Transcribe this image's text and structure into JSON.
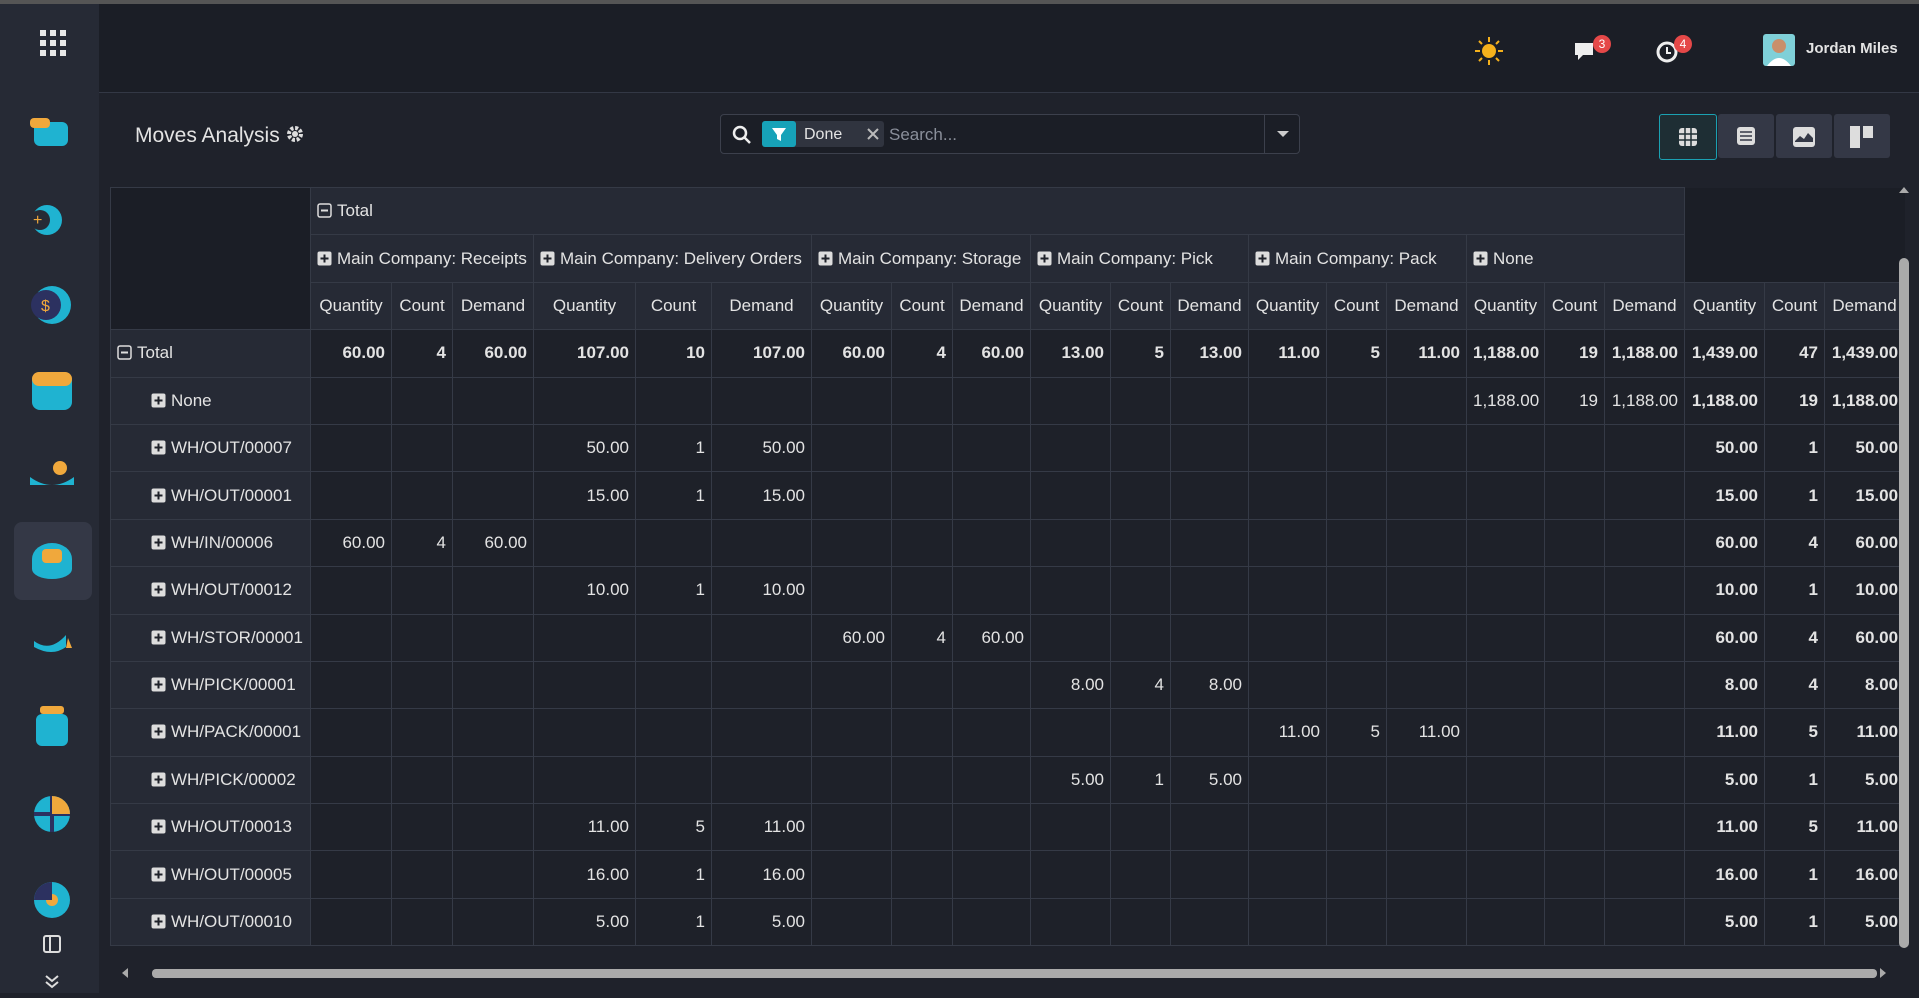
{
  "header": {
    "user_name": "Jordan Miles",
    "messages_count": "3",
    "activities_count": "4"
  },
  "control_panel": {
    "title": "Moves Analysis",
    "filter": "Done",
    "search_placeholder": "Search..."
  },
  "pivot": {
    "column_total": "Total",
    "groups": [
      "Main Company: Receipts",
      "Main Company: Delivery Orders",
      "Main Company: Storage",
      "Main Company: Pick",
      "Main Company: Pack",
      "None"
    ],
    "measures": [
      "Quantity",
      "Count",
      "Demand"
    ],
    "total_row": {
      "label": "Total",
      "values": [
        "60.00",
        "4",
        "60.00",
        "107.00",
        "10",
        "107.00",
        "60.00",
        "4",
        "60.00",
        "13.00",
        "5",
        "13.00",
        "11.00",
        "5",
        "11.00",
        "1,188.00",
        "19",
        "1,188.00",
        "1,439.00",
        "47",
        "1,439.00"
      ]
    },
    "rows": [
      {
        "label": "None",
        "values": [
          null,
          null,
          null,
          null,
          null,
          null,
          null,
          null,
          null,
          null,
          null,
          null,
          null,
          null,
          null,
          "1,188.00",
          "19",
          "1,188.00",
          "1,188.00",
          "19",
          "1,188.00"
        ]
      },
      {
        "label": "WH/OUT/00007",
        "values": [
          null,
          null,
          null,
          "50.00",
          "1",
          "50.00",
          null,
          null,
          null,
          null,
          null,
          null,
          null,
          null,
          null,
          null,
          null,
          null,
          "50.00",
          "1",
          "50.00"
        ]
      },
      {
        "label": "WH/OUT/00001",
        "values": [
          null,
          null,
          null,
          "15.00",
          "1",
          "15.00",
          null,
          null,
          null,
          null,
          null,
          null,
          null,
          null,
          null,
          null,
          null,
          null,
          "15.00",
          "1",
          "15.00"
        ]
      },
      {
        "label": "WH/IN/00006",
        "values": [
          "60.00",
          "4",
          "60.00",
          null,
          null,
          null,
          null,
          null,
          null,
          null,
          null,
          null,
          null,
          null,
          null,
          null,
          null,
          null,
          "60.00",
          "4",
          "60.00"
        ]
      },
      {
        "label": "WH/OUT/00012",
        "values": [
          null,
          null,
          null,
          "10.00",
          "1",
          "10.00",
          null,
          null,
          null,
          null,
          null,
          null,
          null,
          null,
          null,
          null,
          null,
          null,
          "10.00",
          "1",
          "10.00"
        ]
      },
      {
        "label": "WH/STOR/00001",
        "values": [
          null,
          null,
          null,
          null,
          null,
          null,
          "60.00",
          "4",
          "60.00",
          null,
          null,
          null,
          null,
          null,
          null,
          null,
          null,
          null,
          "60.00",
          "4",
          "60.00"
        ]
      },
      {
        "label": "WH/PICK/00001",
        "values": [
          null,
          null,
          null,
          null,
          null,
          null,
          null,
          null,
          null,
          "8.00",
          "4",
          "8.00",
          null,
          null,
          null,
          null,
          null,
          null,
          "8.00",
          "4",
          "8.00"
        ]
      },
      {
        "label": "WH/PACK/00001",
        "values": [
          null,
          null,
          null,
          null,
          null,
          null,
          null,
          null,
          null,
          null,
          null,
          null,
          "11.00",
          "5",
          "11.00",
          null,
          null,
          null,
          "11.00",
          "5",
          "11.00"
        ]
      },
      {
        "label": "WH/PICK/00002",
        "values": [
          null,
          null,
          null,
          null,
          null,
          null,
          null,
          null,
          null,
          "5.00",
          "1",
          "5.00",
          null,
          null,
          null,
          null,
          null,
          null,
          "5.00",
          "1",
          "5.00"
        ]
      },
      {
        "label": "WH/OUT/00013",
        "values": [
          null,
          null,
          null,
          "11.00",
          "5",
          "11.00",
          null,
          null,
          null,
          null,
          null,
          null,
          null,
          null,
          null,
          null,
          null,
          null,
          "11.00",
          "5",
          "11.00"
        ]
      },
      {
        "label": "WH/OUT/00005",
        "values": [
          null,
          null,
          null,
          "16.00",
          "1",
          "16.00",
          null,
          null,
          null,
          null,
          null,
          null,
          null,
          null,
          null,
          null,
          null,
          null,
          "16.00",
          "1",
          "16.00"
        ]
      },
      {
        "label": "WH/OUT/00010",
        "values": [
          null,
          null,
          null,
          "5.00",
          "1",
          "5.00",
          null,
          null,
          null,
          null,
          null,
          null,
          null,
          null,
          null,
          null,
          null,
          null,
          "5.00",
          "1",
          "5.00"
        ]
      }
    ]
  }
}
